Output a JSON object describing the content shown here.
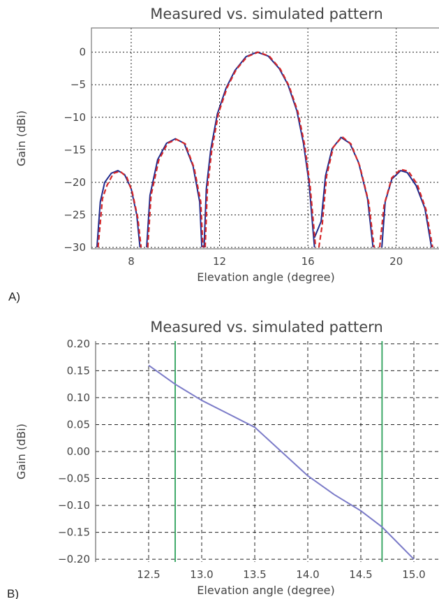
{
  "chart_data": [
    {
      "type": "line",
      "panel_label": "A)",
      "title": "Measured vs. simulated pattern",
      "xlabel": "Elevation angle (degree)",
      "ylabel": "Gain (dBi)",
      "xlim": [
        6.2,
        22.0
      ],
      "ylim": [
        -30,
        2
      ],
      "xticks": [
        8,
        12,
        16,
        20
      ],
      "yticks": [
        0,
        -5,
        -10,
        -15,
        -20,
        -25,
        -30
      ],
      "xtick_labels": [
        "8",
        "12",
        "16",
        "20"
      ],
      "ytick_labels": [
        "0",
        "−5",
        "−10",
        "−15",
        "−20",
        "−25",
        "−30"
      ],
      "grid": true,
      "series": [
        {
          "style": "solid",
          "color": "#1f2a8c",
          "segments": [
            [
              [
                6.45,
                -30
              ],
              [
                6.6,
                -23
              ],
              [
                6.8,
                -20
              ],
              [
                7.1,
                -18.6
              ],
              [
                7.4,
                -18.2
              ],
              [
                7.7,
                -18.8
              ],
              [
                8.0,
                -21
              ],
              [
                8.25,
                -25
              ],
              [
                8.4,
                -30
              ]
            ],
            [
              [
                8.7,
                -30
              ],
              [
                8.85,
                -22
              ],
              [
                9.2,
                -16.5
              ],
              [
                9.6,
                -14.0
              ],
              [
                10.0,
                -13.3
              ],
              [
                10.4,
                -14.0
              ],
              [
                10.8,
                -17.5
              ],
              [
                11.1,
                -23
              ],
              [
                11.2,
                -30
              ]
            ],
            [
              [
                11.3,
                -30
              ],
              [
                11.4,
                -21
              ],
              [
                11.6,
                -15
              ],
              [
                11.9,
                -9.5
              ],
              [
                12.3,
                -5.5
              ],
              [
                12.7,
                -2.8
              ],
              [
                13.2,
                -0.7
              ],
              [
                13.7,
                0
              ],
              [
                14.2,
                -0.6
              ],
              [
                14.7,
                -2.5
              ],
              [
                15.1,
                -5
              ],
              [
                15.5,
                -9
              ],
              [
                15.8,
                -14
              ],
              [
                16.05,
                -20
              ],
              [
                16.25,
                -28
              ],
              [
                16.3,
                -30
              ]
            ],
            [
              [
                16.3,
                -28.5
              ],
              [
                16.6,
                -26
              ],
              [
                16.8,
                -19
              ],
              [
                17.1,
                -14.8
              ],
              [
                17.5,
                -13.1
              ],
              [
                17.9,
                -14.0
              ],
              [
                18.3,
                -17
              ],
              [
                18.7,
                -22.5
              ],
              [
                18.95,
                -30
              ]
            ],
            [
              [
                19.35,
                -30
              ],
              [
                19.5,
                -23
              ],
              [
                19.8,
                -19.5
              ],
              [
                20.2,
                -18.2
              ],
              [
                20.5,
                -18.5
              ],
              [
                20.9,
                -20.5
              ],
              [
                21.3,
                -24
              ],
              [
                21.6,
                -30
              ]
            ]
          ]
        },
        {
          "style": "dashed",
          "color": "#d62728",
          "segments": [
            [
              [
                6.5,
                -30
              ],
              [
                6.7,
                -22.5
              ],
              [
                6.9,
                -20.5
              ],
              [
                7.2,
                -18.6
              ],
              [
                7.5,
                -18.3
              ],
              [
                7.8,
                -19.2
              ],
              [
                8.05,
                -21.5
              ],
              [
                8.3,
                -25.5
              ],
              [
                8.45,
                -30
              ]
            ],
            [
              [
                8.75,
                -30
              ],
              [
                8.9,
                -22
              ],
              [
                9.25,
                -16.6
              ],
              [
                9.65,
                -14.0
              ],
              [
                10.05,
                -13.4
              ],
              [
                10.45,
                -14.1
              ],
              [
                10.85,
                -17.8
              ],
              [
                11.15,
                -23
              ],
              [
                11.25,
                -30
              ]
            ],
            [
              [
                11.35,
                -30
              ],
              [
                11.45,
                -21
              ],
              [
                11.65,
                -15
              ],
              [
                11.95,
                -9.4
              ],
              [
                12.35,
                -5.4
              ],
              [
                12.75,
                -2.7
              ],
              [
                13.25,
                -0.7
              ],
              [
                13.75,
                0
              ],
              [
                14.25,
                -0.6
              ],
              [
                14.75,
                -2.6
              ],
              [
                15.15,
                -5.2
              ],
              [
                15.55,
                -9.2
              ],
              [
                15.85,
                -14.2
              ],
              [
                16.1,
                -20.5
              ],
              [
                16.35,
                -30
              ]
            ],
            [
              [
                16.5,
                -30
              ],
              [
                16.65,
                -26.5
              ],
              [
                16.85,
                -19
              ],
              [
                17.15,
                -14.6
              ],
              [
                17.55,
                -13.0
              ],
              [
                17.95,
                -14.1
              ],
              [
                18.35,
                -17.5
              ],
              [
                18.75,
                -23
              ],
              [
                19.0,
                -30
              ]
            ],
            [
              [
                19.25,
                -30
              ],
              [
                19.45,
                -23.5
              ],
              [
                19.8,
                -19.3
              ],
              [
                20.2,
                -18.0
              ],
              [
                20.55,
                -18.3
              ],
              [
                20.95,
                -20.3
              ],
              [
                21.35,
                -24.2
              ],
              [
                21.65,
                -30
              ]
            ]
          ]
        }
      ]
    },
    {
      "type": "line",
      "panel_label": "B)",
      "title": "Measured vs. simulated pattern",
      "xlabel": "Elevation angle (degree)",
      "ylabel": "Gain (dBi)",
      "xlim": [
        12.0,
        15.25
      ],
      "ylim": [
        -0.205,
        0.205
      ],
      "xticks": [
        12.5,
        13.0,
        13.5,
        14.0,
        14.5,
        15.0
      ],
      "xtick_labels": [
        "12.5",
        "13.0",
        "13.5",
        "14.0",
        "14.5",
        "15.0"
      ],
      "yticks": [
        0.2,
        0.15,
        0.1,
        0.05,
        0.0,
        -0.05,
        -0.1,
        -0.15,
        -0.2
      ],
      "ytick_labels": [
        "0.20",
        "0.15",
        "0.10",
        "0.05",
        "0.00",
        "−0.05",
        "−0.10",
        "−0.15",
        "−0.20"
      ],
      "grid": true,
      "vlines": [
        {
          "x": 12.75,
          "color": "#2ca05a"
        },
        {
          "x": 14.7,
          "color": "#2ca05a"
        }
      ],
      "series": [
        {
          "style": "solid",
          "color": "#7b7bc8",
          "segments": [
            [
              [
                12.5,
                0.16
              ],
              [
                12.75,
                0.125
              ],
              [
                13.0,
                0.095
              ],
              [
                13.25,
                0.07
              ],
              [
                13.5,
                0.045
              ],
              [
                13.75,
                0.0
              ],
              [
                14.0,
                -0.045
              ],
              [
                14.25,
                -0.08
              ],
              [
                14.5,
                -0.11
              ],
              [
                14.7,
                -0.14
              ],
              [
                14.85,
                -0.17
              ],
              [
                15.0,
                -0.2
              ]
            ]
          ]
        }
      ]
    }
  ]
}
